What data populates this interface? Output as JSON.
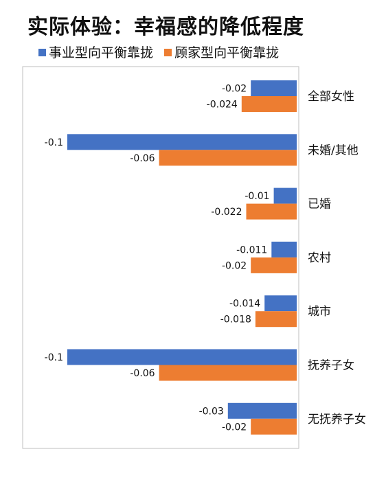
{
  "chart_data": {
    "type": "bar",
    "orientation": "horizontal",
    "title": "实际体验：幸福感的降低程度",
    "categories": [
      "全部女性",
      "未婚/其他",
      "已婚",
      "农村",
      "城市",
      "抚养子女",
      "无抚养子女"
    ],
    "series": [
      {
        "name": "事业型向平衡靠拢",
        "color": "#4472C4",
        "values": [
          -0.02,
          -0.1,
          -0.01,
          -0.011,
          -0.014,
          -0.1,
          -0.03
        ]
      },
      {
        "name": "顾家型向平衡靠拢",
        "color": "#ED7D31",
        "values": [
          -0.024,
          -0.06,
          -0.022,
          -0.02,
          -0.018,
          -0.06,
          -0.02
        ]
      }
    ],
    "xlim": [
      -0.1,
      0
    ],
    "legend": "top",
    "grid": false
  }
}
